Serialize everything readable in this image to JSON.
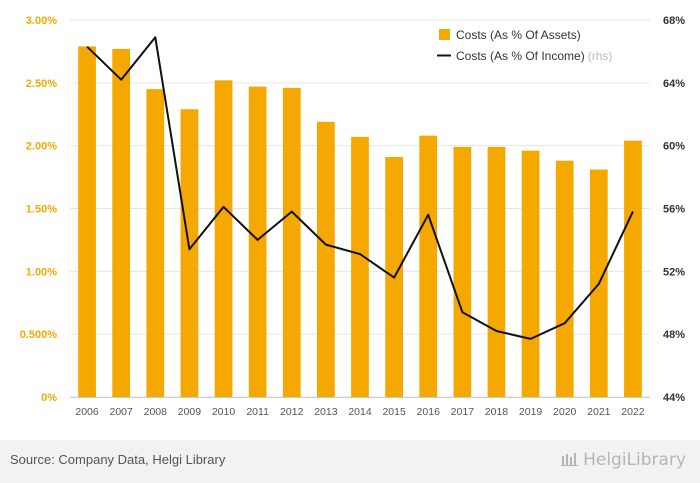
{
  "chart_data": {
    "type": "bar",
    "title": "",
    "categories": [
      "2006",
      "2007",
      "2008",
      "2009",
      "2010",
      "2011",
      "2012",
      "2013",
      "2014",
      "2015",
      "2016",
      "2017",
      "2018",
      "2019",
      "2020",
      "2021",
      "2022"
    ],
    "series": [
      {
        "name": "Costs (As % Of Assets)",
        "type": "bar",
        "axis": "left",
        "color": "#f5a800",
        "values": [
          2.79,
          2.77,
          2.45,
          2.29,
          2.52,
          2.47,
          2.46,
          2.19,
          2.07,
          1.91,
          2.08,
          1.99,
          1.99,
          1.96,
          1.88,
          1.81,
          2.04
        ]
      },
      {
        "name": "Costs (As % Of Income)",
        "name_suffix": "(rhs)",
        "type": "line",
        "axis": "right",
        "color": "#111111",
        "values": [
          66.3,
          64.2,
          66.9,
          53.4,
          56.1,
          54.0,
          55.8,
          53.7,
          53.1,
          51.6,
          55.6,
          49.4,
          48.2,
          47.7,
          48.7,
          51.2,
          55.8
        ]
      }
    ],
    "y_left": {
      "min": 0,
      "max": 3.0,
      "ticks": [
        "0%",
        "0.500%",
        "1.00%",
        "1.50%",
        "2.00%",
        "2.50%",
        "3.00%"
      ],
      "tick_values": [
        0,
        0.5,
        1.0,
        1.5,
        2.0,
        2.5,
        3.0
      ]
    },
    "y_right": {
      "min": 44,
      "max": 68,
      "ticks": [
        "44%",
        "48%",
        "52%",
        "56%",
        "60%",
        "64%",
        "68%"
      ],
      "tick_values": [
        44,
        48,
        52,
        56,
        60,
        64,
        68
      ]
    },
    "grid": true,
    "legend_position": "top-right"
  },
  "footer": {
    "source": "Source: Company Data, Helgi Library",
    "brand": "HelgiLibrary",
    "brand_icon": "library-icon"
  }
}
